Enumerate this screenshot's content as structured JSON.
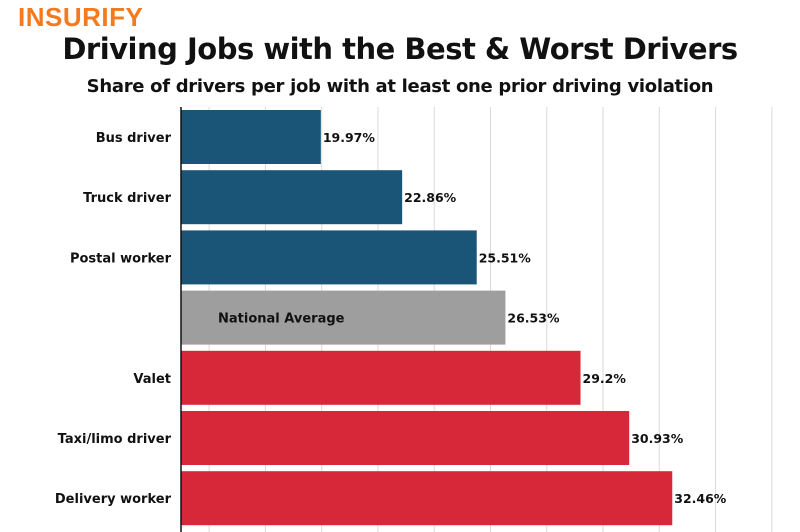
{
  "logo": "INSURIFY",
  "chart_data": {
    "type": "bar",
    "orientation": "horizontal",
    "title": "Driving Jobs with the Best & Worst Drivers",
    "subtitle": "Share of drivers per job with at least one prior driving violation",
    "categories": [
      "Bus driver",
      "Truck driver",
      "Postal worker",
      "National Average",
      "Valet",
      "Taxi/limo driver",
      "Delivery worker"
    ],
    "values": [
      19.97,
      22.86,
      25.51,
      26.53,
      29.2,
      30.93,
      32.46
    ],
    "data_labels": [
      "19.97%",
      "22.86%",
      "25.51%",
      "26.53%",
      "29.2%",
      "30.93%",
      "32.46%"
    ],
    "bar_colors": [
      "#1a5476",
      "#1a5476",
      "#1a5476",
      "#9e9e9e",
      "#d62839",
      "#d62839",
      "#d62839"
    ],
    "xlim": [
      15,
      37
    ],
    "grid_step": 2,
    "grid": true,
    "xlabel": "",
    "ylabel": ""
  },
  "colors": {
    "logo": "#f47a20",
    "best": "#1a5476",
    "average": "#9e9e9e",
    "worst": "#d62839"
  }
}
